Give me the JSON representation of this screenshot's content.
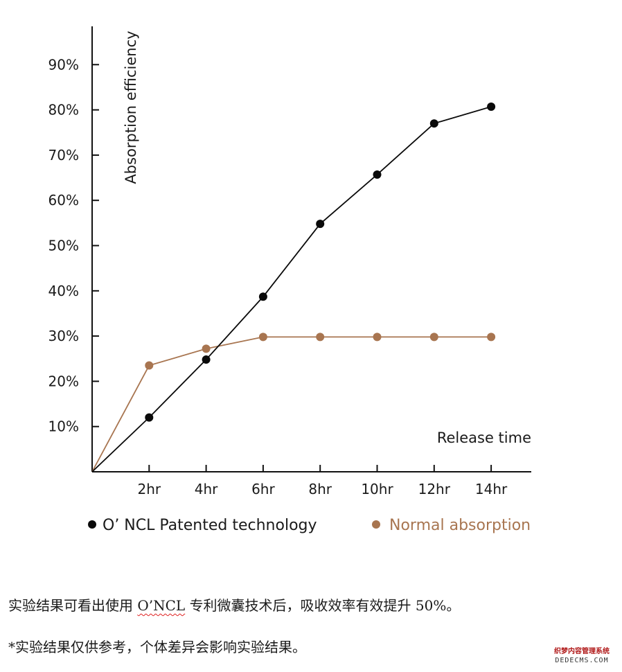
{
  "chart_data": {
    "type": "line",
    "title": "",
    "xlabel": "Release time",
    "ylabel": "Absorption efficiency",
    "categories": [
      "0",
      "2hr",
      "4hr",
      "6hr",
      "8hr",
      "10hr",
      "12hr",
      "14hr"
    ],
    "x_tick_labels": [
      "2hr",
      "4hr",
      "6hr",
      "8hr",
      "10hr",
      "12hr",
      "14hr"
    ],
    "y_tick_labels": [
      "10%",
      "20%",
      "30%",
      "40%",
      "50%",
      "60%",
      "70%",
      "80%",
      "90%"
    ],
    "ylim": [
      0,
      90
    ],
    "grid": false,
    "legend_position": "bottom",
    "series": [
      {
        "name": "O’ NCL  Patented technology",
        "color": "#0a0a0a",
        "values": [
          0,
          12,
          24.8,
          38.7,
          54.8,
          65.7,
          77,
          80.7
        ]
      },
      {
        "name": "Normal absorption",
        "color": "#a87550",
        "values": [
          0,
          23.5,
          27.2,
          29.8,
          29.8,
          29.8,
          29.8,
          29.8
        ]
      }
    ]
  },
  "notes": {
    "line1_prefix": "实验结果可看出使用",
    "line1_brand": "O’NCL",
    "line1_suffix": "专利微囊技术后，吸收效率有效提升 50%。",
    "line2": "*实验结果仅供参考，个体差异会影响实验结果。"
  },
  "watermark": {
    "line1": "织梦内容管理系统",
    "line2": "DEDECMS.COM"
  }
}
